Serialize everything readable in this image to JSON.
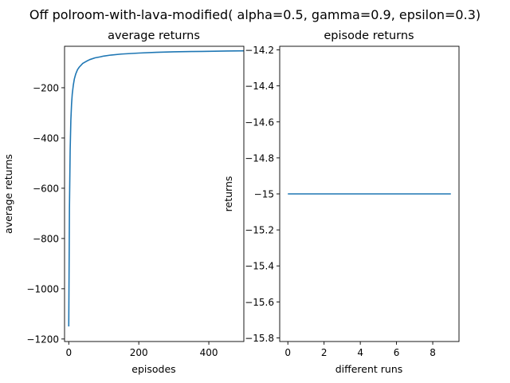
{
  "figure": {
    "suptitle": "Off polroom-with-lava-modified( alpha=0.5, gamma=0.9, epsilon=0.3)"
  },
  "chart_data": [
    {
      "type": "line",
      "title": "average returns",
      "xlabel": "episodes",
      "ylabel": "average returns",
      "xlim": [
        -12,
        500
      ],
      "ylim": [
        -1210,
        -35
      ],
      "xticks": [
        0,
        200,
        400
      ],
      "yticks": [
        -1200,
        -1000,
        -800,
        -600,
        -400,
        -200
      ],
      "grid": false,
      "series": [
        {
          "color": "#1f77b4",
          "x": [
            0,
            2,
            4,
            6,
            8,
            10,
            13,
            16,
            20,
            25,
            30,
            40,
            50,
            60,
            75,
            90,
            100,
            120,
            150,
            200,
            250,
            300,
            350,
            400,
            450,
            500
          ],
          "y": [
            -1150,
            -680,
            -450,
            -330,
            -265,
            -225,
            -190,
            -165,
            -145,
            -128,
            -118,
            -103,
            -95,
            -88,
            -81,
            -77,
            -74,
            -70,
            -66,
            -62,
            -59,
            -57,
            -56,
            -55,
            -54,
            -53
          ]
        }
      ]
    },
    {
      "type": "line",
      "title": "episode returns",
      "xlabel": "different runs",
      "ylabel": "returns",
      "xlim": [
        -0.45,
        9.45
      ],
      "ylim": [
        -15.82,
        -14.18
      ],
      "xticks": [
        0,
        2,
        4,
        6,
        8
      ],
      "yticks": [
        -14.2,
        -14.4,
        -14.6,
        -14.8,
        -15.0,
        -15.2,
        -15.4,
        -15.6,
        -15.8
      ],
      "grid": false,
      "series": [
        {
          "color": "#1f77b4",
          "x": [
            0,
            1,
            2,
            3,
            4,
            5,
            6,
            7,
            8,
            9
          ],
          "y": [
            -15,
            -15,
            -15,
            -15,
            -15,
            -15,
            -15,
            -15,
            -15,
            -15
          ]
        }
      ]
    }
  ]
}
